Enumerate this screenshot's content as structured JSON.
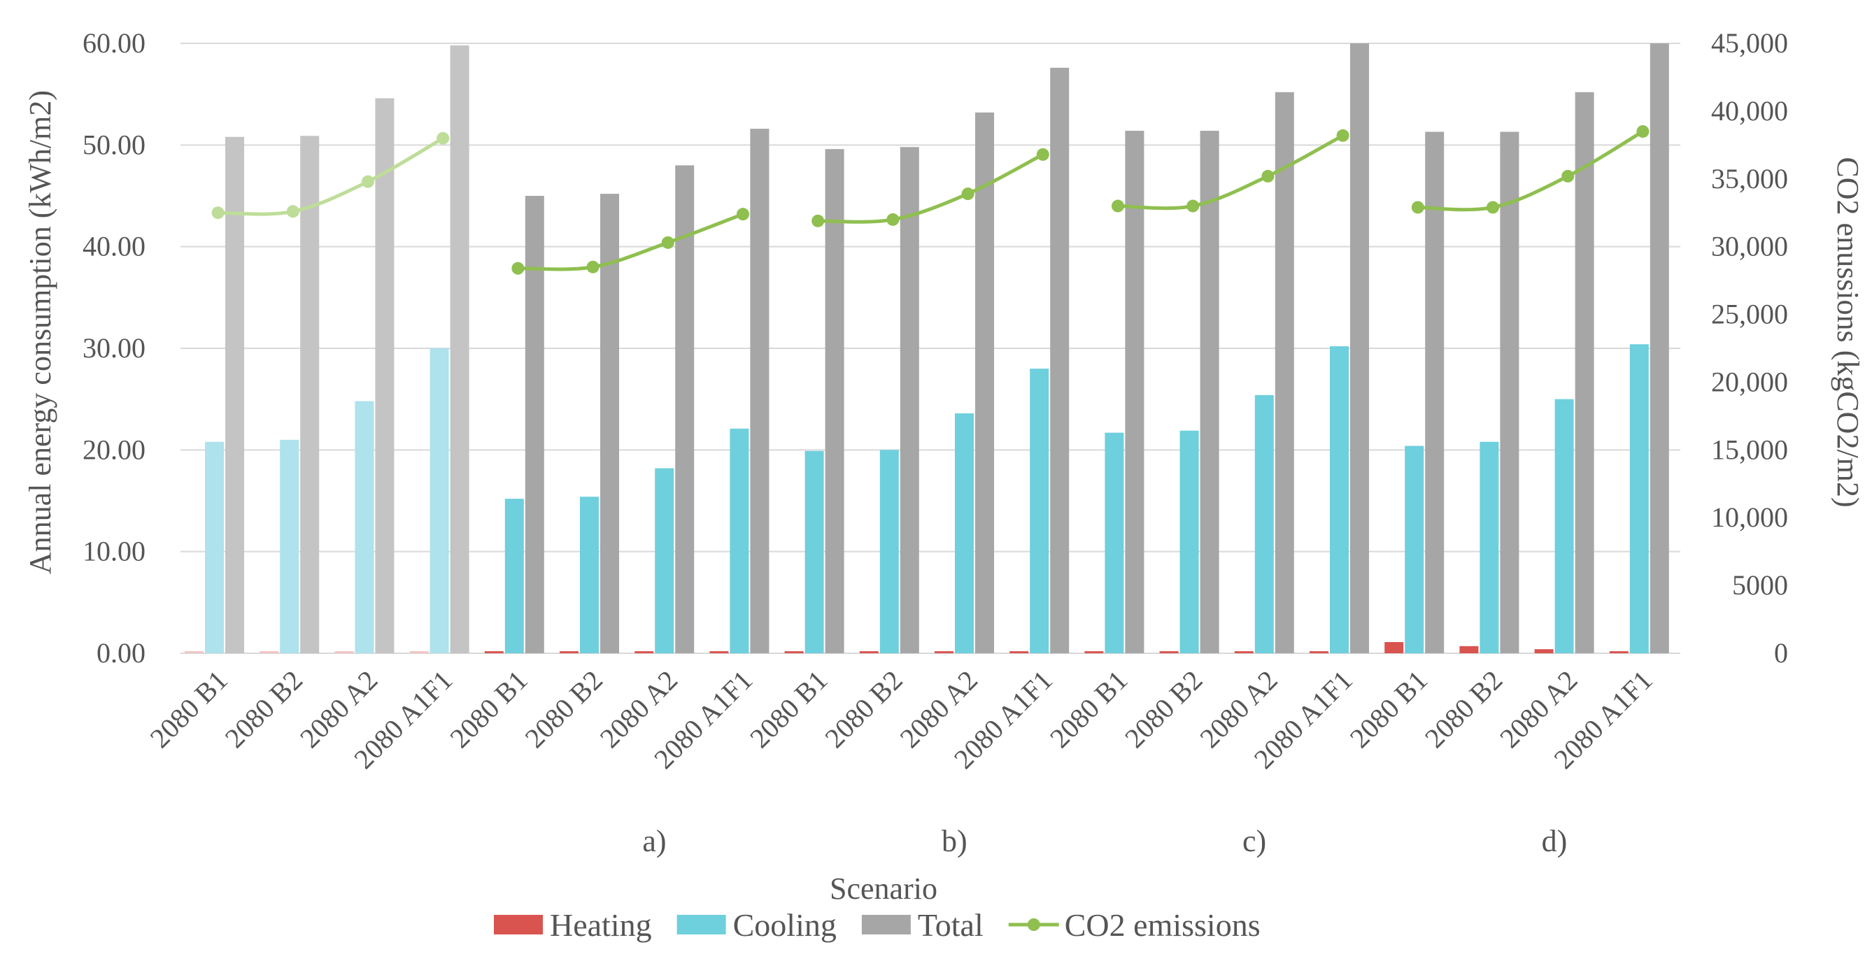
{
  "chart_data": {
    "type": "bar",
    "title": "",
    "xlabel": "Scenario",
    "ylabel": "Annual energy consumption (kWh/m2)",
    "y2label": "CO2 enussions (kgCO2/m2)",
    "ylim": [
      0,
      60
    ],
    "y2lim": [
      0,
      45000
    ],
    "yticks": [
      "0.00",
      "10.00",
      "20.00",
      "30.00",
      "40.00",
      "50.00",
      "60.00"
    ],
    "y2ticks": [
      "0",
      "5000",
      "10,000",
      "15,000",
      "20,000",
      "25,000",
      "30,000",
      "35,000",
      "40,000",
      "45,000"
    ],
    "grid": true,
    "legend_position": "bottom",
    "categories": [
      "2080 B1",
      "2080 B2",
      "2080 A2",
      "2080 A1F1"
    ],
    "groups": [
      {
        "label": "",
        "faded": true,
        "heating": [
          0.2,
          0.2,
          0.2,
          0.2
        ],
        "cooling": [
          20.8,
          21.0,
          24.8,
          30.0
        ],
        "total": [
          50.8,
          50.9,
          54.6,
          59.8
        ],
        "co2": [
          32500,
          32600,
          34800,
          38000
        ]
      },
      {
        "label": "a)",
        "faded": false,
        "heating": [
          0.2,
          0.2,
          0.2,
          0.2
        ],
        "cooling": [
          15.2,
          15.4,
          18.2,
          22.1
        ],
        "total": [
          45.0,
          45.2,
          48.0,
          51.6
        ],
        "co2": [
          28400,
          28500,
          30300,
          32400
        ]
      },
      {
        "label": "b)",
        "faded": false,
        "heating": [
          0.2,
          0.2,
          0.2,
          0.2
        ],
        "cooling": [
          19.9,
          20.0,
          23.6,
          28.0
        ],
        "total": [
          49.6,
          49.8,
          53.2,
          57.6
        ],
        "co2": [
          31900,
          32000,
          33900,
          36800
        ]
      },
      {
        "label": "c)",
        "faded": false,
        "heating": [
          0.2,
          0.2,
          0.2,
          0.2
        ],
        "cooling": [
          21.7,
          21.9,
          25.4,
          30.2
        ],
        "total": [
          51.4,
          51.4,
          55.2,
          60.0
        ],
        "co2": [
          33000,
          33000,
          35200,
          38200
        ]
      },
      {
        "label": "d)",
        "faded": false,
        "heating": [
          1.1,
          0.7,
          0.4,
          0.2
        ],
        "cooling": [
          20.4,
          20.8,
          25.0,
          30.4
        ],
        "total": [
          51.3,
          51.3,
          55.2,
          60.0
        ],
        "co2": [
          32900,
          32900,
          35200,
          38500
        ]
      }
    ],
    "series": [
      {
        "name": "Heating",
        "kind": "bar",
        "color": "#d9534f",
        "fadedColor": "#f2c4c4"
      },
      {
        "name": "Cooling",
        "kind": "bar",
        "color": "#6ecfdd",
        "fadedColor": "#aee2ec"
      },
      {
        "name": "Total",
        "kind": "bar",
        "color": "#a6a6a6",
        "fadedColor": "#c4c4c4"
      },
      {
        "name": "CO2 emissions",
        "kind": "line",
        "color": "#8fbf4f",
        "fadedColor": "#bedd99",
        "axis": "right"
      }
    ]
  }
}
